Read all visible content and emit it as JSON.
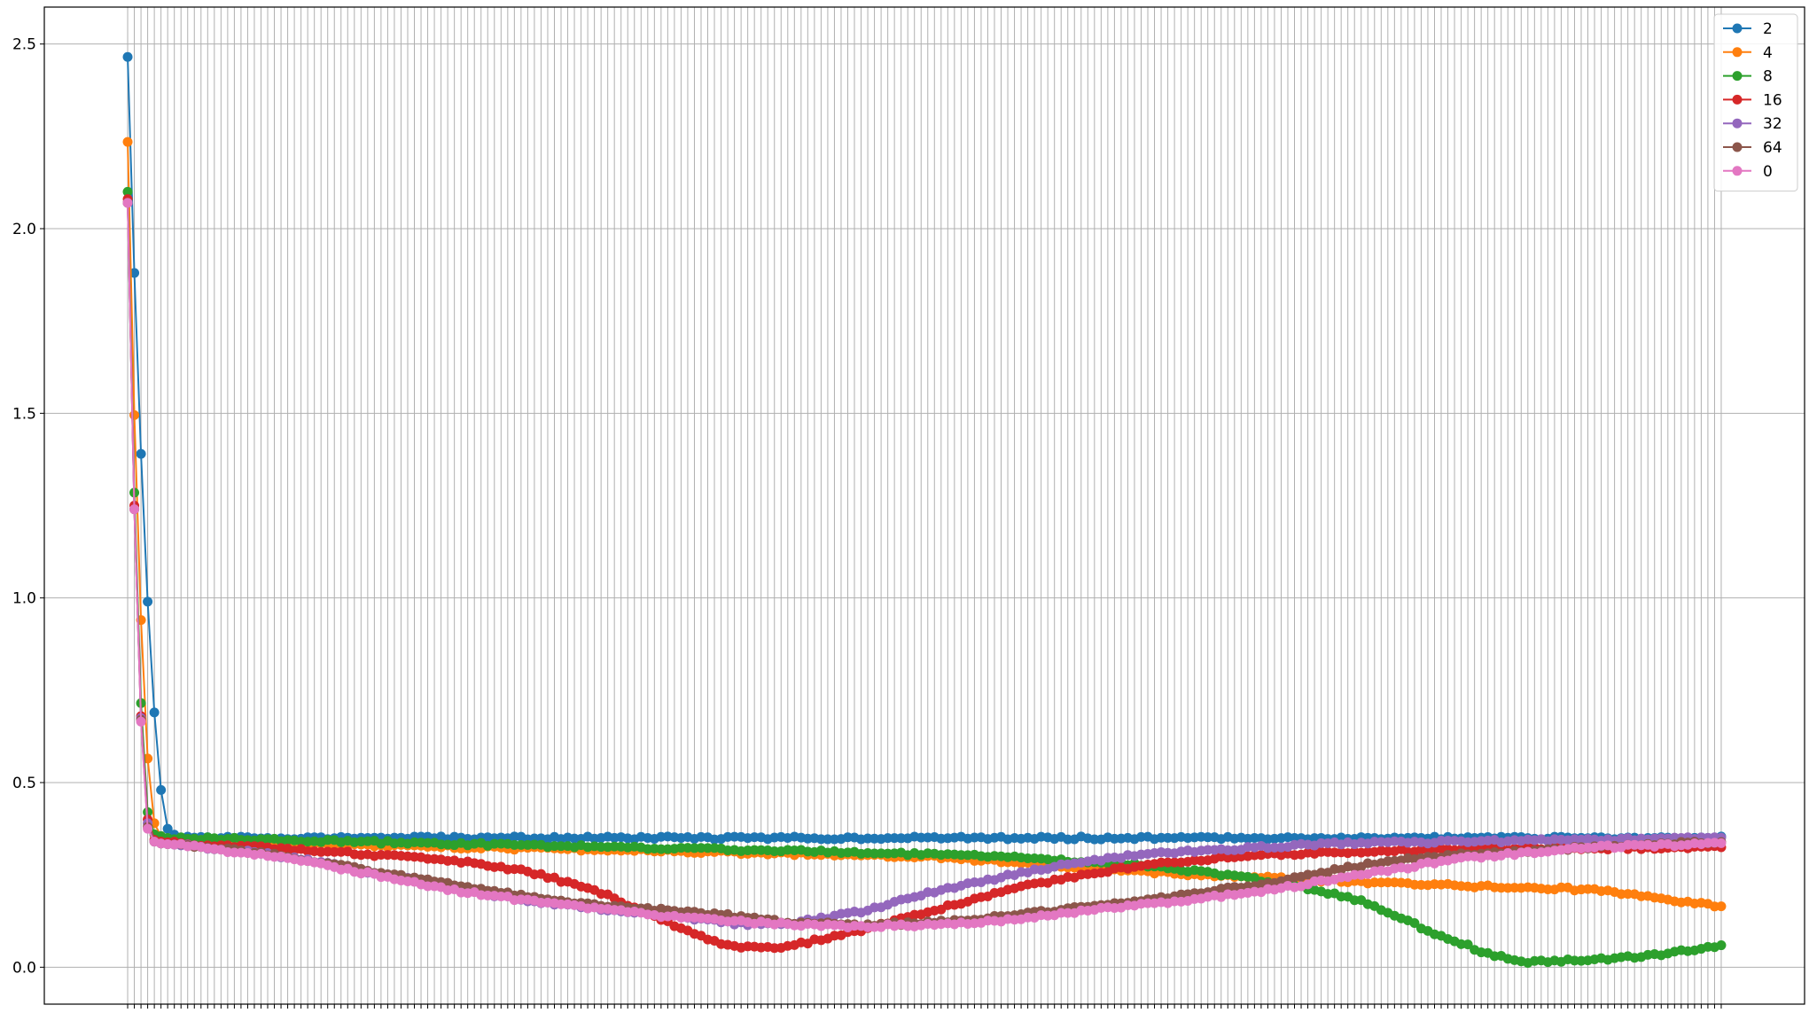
{
  "chart_data": {
    "type": "line",
    "title": "",
    "xlabel": "",
    "ylabel": "",
    "grid": true,
    "legend_position": "top-right",
    "x_count": 240,
    "x_ticks_labeled": false,
    "ylim": [
      -0.1,
      2.6
    ],
    "yticks": [
      "0.0",
      "0.5",
      "1.0",
      "1.5",
      "2.0",
      "2.5"
    ],
    "series": [
      {
        "name": "2",
        "color": "#1f77b4",
        "knots": [
          [
            0,
            2.465
          ],
          [
            1,
            1.88
          ],
          [
            2,
            1.39
          ],
          [
            3,
            0.99
          ],
          [
            4,
            0.69
          ],
          [
            5,
            0.48
          ],
          [
            6,
            0.375
          ],
          [
            7,
            0.355
          ],
          [
            8,
            0.35
          ],
          [
            20,
            0.35
          ],
          [
            60,
            0.35
          ],
          [
            120,
            0.35
          ],
          [
            150,
            0.35
          ],
          [
            200,
            0.35
          ],
          [
            239,
            0.35
          ]
        ]
      },
      {
        "name": "4",
        "color": "#ff7f0e",
        "knots": [
          [
            0,
            2.235
          ],
          [
            1,
            1.495
          ],
          [
            2,
            0.94
          ],
          [
            3,
            0.565
          ],
          [
            4,
            0.39
          ],
          [
            5,
            0.355
          ],
          [
            6,
            0.345
          ],
          [
            20,
            0.335
          ],
          [
            80,
            0.315
          ],
          [
            120,
            0.3
          ],
          [
            160,
            0.25
          ],
          [
            200,
            0.22
          ],
          [
            220,
            0.21
          ],
          [
            239,
            0.165
          ]
        ]
      },
      {
        "name": "8",
        "color": "#2ca02c",
        "knots": [
          [
            0,
            2.1
          ],
          [
            1,
            1.285
          ],
          [
            2,
            0.715
          ],
          [
            3,
            0.42
          ],
          [
            4,
            0.36
          ],
          [
            5,
            0.355
          ],
          [
            6,
            0.35
          ],
          [
            20,
            0.345
          ],
          [
            60,
            0.33
          ],
          [
            100,
            0.315
          ],
          [
            130,
            0.3
          ],
          [
            150,
            0.28
          ],
          [
            165,
            0.25
          ],
          [
            175,
            0.22
          ],
          [
            185,
            0.18
          ],
          [
            195,
            0.1
          ],
          [
            205,
            0.03
          ],
          [
            210,
            0.015
          ],
          [
            220,
            0.02
          ],
          [
            230,
            0.035
          ],
          [
            239,
            0.06
          ]
        ]
      },
      {
        "name": "16",
        "color": "#d62728",
        "knots": [
          [
            0,
            2.08
          ],
          [
            1,
            1.25
          ],
          [
            2,
            0.68
          ],
          [
            3,
            0.4
          ],
          [
            4,
            0.345
          ],
          [
            5,
            0.34
          ],
          [
            8,
            0.335
          ],
          [
            30,
            0.315
          ],
          [
            50,
            0.285
          ],
          [
            60,
            0.26
          ],
          [
            70,
            0.21
          ],
          [
            75,
            0.17
          ],
          [
            80,
            0.13
          ],
          [
            85,
            0.09
          ],
          [
            90,
            0.06
          ],
          [
            95,
            0.05
          ],
          [
            100,
            0.06
          ],
          [
            110,
            0.1
          ],
          [
            120,
            0.15
          ],
          [
            130,
            0.2
          ],
          [
            140,
            0.24
          ],
          [
            150,
            0.27
          ],
          [
            160,
            0.29
          ],
          [
            170,
            0.305
          ],
          [
            180,
            0.31
          ],
          [
            200,
            0.32
          ],
          [
            239,
            0.325
          ]
        ]
      },
      {
        "name": "32",
        "color": "#9467bd",
        "knots": [
          [
            0,
            2.07
          ],
          [
            1,
            1.24
          ],
          [
            2,
            0.675
          ],
          [
            3,
            0.39
          ],
          [
            4,
            0.34
          ],
          [
            5,
            0.335
          ],
          [
            8,
            0.33
          ],
          [
            20,
            0.31
          ],
          [
            30,
            0.28
          ],
          [
            40,
            0.245
          ],
          [
            50,
            0.21
          ],
          [
            60,
            0.18
          ],
          [
            70,
            0.16
          ],
          [
            80,
            0.145
          ],
          [
            90,
            0.12
          ],
          [
            95,
            0.115
          ],
          [
            100,
            0.12
          ],
          [
            110,
            0.15
          ],
          [
            120,
            0.2
          ],
          [
            130,
            0.24
          ],
          [
            140,
            0.275
          ],
          [
            150,
            0.3
          ],
          [
            160,
            0.315
          ],
          [
            170,
            0.325
          ],
          [
            180,
            0.335
          ],
          [
            200,
            0.34
          ],
          [
            239,
            0.35
          ]
        ]
      },
      {
        "name": "64",
        "color": "#8c564b",
        "knots": [
          [
            0,
            2.07
          ],
          [
            1,
            1.24
          ],
          [
            2,
            0.67
          ],
          [
            3,
            0.38
          ],
          [
            4,
            0.34
          ],
          [
            5,
            0.335
          ],
          [
            8,
            0.33
          ],
          [
            20,
            0.31
          ],
          [
            30,
            0.28
          ],
          [
            40,
            0.25
          ],
          [
            50,
            0.22
          ],
          [
            60,
            0.19
          ],
          [
            70,
            0.17
          ],
          [
            80,
            0.155
          ],
          [
            90,
            0.14
          ],
          [
            100,
            0.12
          ],
          [
            110,
            0.115
          ],
          [
            120,
            0.12
          ],
          [
            130,
            0.135
          ],
          [
            140,
            0.155
          ],
          [
            150,
            0.175
          ],
          [
            160,
            0.2
          ],
          [
            170,
            0.225
          ],
          [
            180,
            0.26
          ],
          [
            190,
            0.29
          ],
          [
            200,
            0.305
          ],
          [
            210,
            0.315
          ],
          [
            220,
            0.325
          ],
          [
            239,
            0.34
          ]
        ]
      },
      {
        "name": "0",
        "color": "#e377c2",
        "knots": [
          [
            0,
            2.07
          ],
          [
            1,
            1.24
          ],
          [
            2,
            0.665
          ],
          [
            3,
            0.375
          ],
          [
            4,
            0.34
          ],
          [
            5,
            0.335
          ],
          [
            8,
            0.33
          ],
          [
            20,
            0.305
          ],
          [
            30,
            0.275
          ],
          [
            40,
            0.24
          ],
          [
            50,
            0.205
          ],
          [
            60,
            0.18
          ],
          [
            70,
            0.16
          ],
          [
            80,
            0.14
          ],
          [
            90,
            0.125
          ],
          [
            100,
            0.115
          ],
          [
            110,
            0.11
          ],
          [
            120,
            0.115
          ],
          [
            130,
            0.125
          ],
          [
            140,
            0.145
          ],
          [
            150,
            0.165
          ],
          [
            160,
            0.185
          ],
          [
            170,
            0.205
          ],
          [
            180,
            0.235
          ],
          [
            190,
            0.265
          ],
          [
            200,
            0.295
          ],
          [
            210,
            0.31
          ],
          [
            220,
            0.325
          ],
          [
            239,
            0.335
          ]
        ]
      }
    ]
  }
}
